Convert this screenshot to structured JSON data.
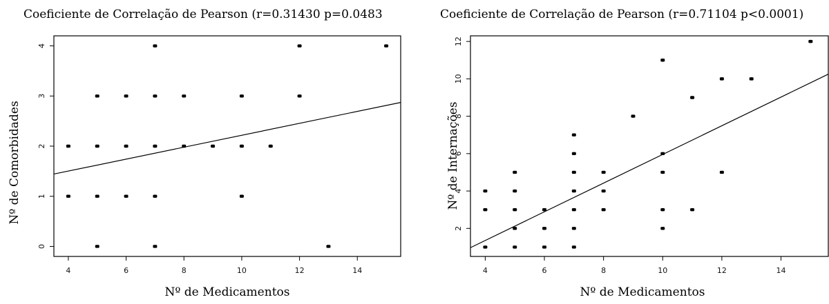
{
  "chart_data": [
    {
      "type": "scatter",
      "title": "Coeficiente de Correlação de Pearson (r=0.31430 p=0.0483",
      "xlabel": "Nº de Medicamentos",
      "ylabel": "Nº de Comorbidades",
      "xlim": [
        3.5,
        15.5
      ],
      "ylim": [
        -0.2,
        4.2
      ],
      "xticks": [
        "4",
        "6",
        "8",
        "10",
        "12",
        "14"
      ],
      "yticks": [
        "0",
        "1",
        "2",
        "3",
        "4"
      ],
      "grid": false,
      "points": [
        {
          "x": 4,
          "y": 2
        },
        {
          "x": 4,
          "y": 1
        },
        {
          "x": 5,
          "y": 3
        },
        {
          "x": 5,
          "y": 2
        },
        {
          "x": 5,
          "y": 1
        },
        {
          "x": 5,
          "y": 0
        },
        {
          "x": 6,
          "y": 3
        },
        {
          "x": 6,
          "y": 2
        },
        {
          "x": 6,
          "y": 1
        },
        {
          "x": 7,
          "y": 4
        },
        {
          "x": 7,
          "y": 3
        },
        {
          "x": 7,
          "y": 2
        },
        {
          "x": 7,
          "y": 1
        },
        {
          "x": 7,
          "y": 0
        },
        {
          "x": 8,
          "y": 3
        },
        {
          "x": 8,
          "y": 2
        },
        {
          "x": 9,
          "y": 2
        },
        {
          "x": 10,
          "y": 3
        },
        {
          "x": 10,
          "y": 2
        },
        {
          "x": 10,
          "y": 1
        },
        {
          "x": 11,
          "y": 2
        },
        {
          "x": 12,
          "y": 4
        },
        {
          "x": 12,
          "y": 3
        },
        {
          "x": 13,
          "y": 0
        },
        {
          "x": 15,
          "y": 4
        }
      ],
      "trend_line": {
        "intercept": 1.027,
        "slope": 0.119
      }
    },
    {
      "type": "scatter",
      "title": "Coeficiente de Correlação de Pearson (r=0.71104 p<0.0001)",
      "xlabel": "Nº de Medicamentos",
      "ylabel": "Nº de Internações",
      "xlim": [
        3.5,
        15.6
      ],
      "ylim": [
        0.5,
        12.3
      ],
      "xticks": [
        "4",
        "6",
        "8",
        "10",
        "12",
        "14"
      ],
      "yticks": [
        "2",
        "4",
        "6",
        "8",
        "10",
        "12"
      ],
      "grid": false,
      "points": [
        {
          "x": 4,
          "y": 4
        },
        {
          "x": 4,
          "y": 3
        },
        {
          "x": 4,
          "y": 1
        },
        {
          "x": 5,
          "y": 5
        },
        {
          "x": 5,
          "y": 4
        },
        {
          "x": 5,
          "y": 3
        },
        {
          "x": 5,
          "y": 2
        },
        {
          "x": 5,
          "y": 1
        },
        {
          "x": 6,
          "y": 3
        },
        {
          "x": 6,
          "y": 2
        },
        {
          "x": 6,
          "y": 1
        },
        {
          "x": 7,
          "y": 7
        },
        {
          "x": 7,
          "y": 6
        },
        {
          "x": 7,
          "y": 5
        },
        {
          "x": 7,
          "y": 4
        },
        {
          "x": 7,
          "y": 3
        },
        {
          "x": 7,
          "y": 2
        },
        {
          "x": 7,
          "y": 1
        },
        {
          "x": 8,
          "y": 5
        },
        {
          "x": 8,
          "y": 4
        },
        {
          "x": 8,
          "y": 3
        },
        {
          "x": 9,
          "y": 8
        },
        {
          "x": 10,
          "y": 11
        },
        {
          "x": 10,
          "y": 6
        },
        {
          "x": 10,
          "y": 5
        },
        {
          "x": 10,
          "y": 3
        },
        {
          "x": 10,
          "y": 2
        },
        {
          "x": 11,
          "y": 9
        },
        {
          "x": 11,
          "y": 3
        },
        {
          "x": 12,
          "y": 10
        },
        {
          "x": 12,
          "y": 5
        },
        {
          "x": 13,
          "y": 10
        },
        {
          "x": 15,
          "y": 12
        }
      ],
      "trend_line": {
        "intercept": -1.714,
        "slope": 0.767
      }
    }
  ]
}
